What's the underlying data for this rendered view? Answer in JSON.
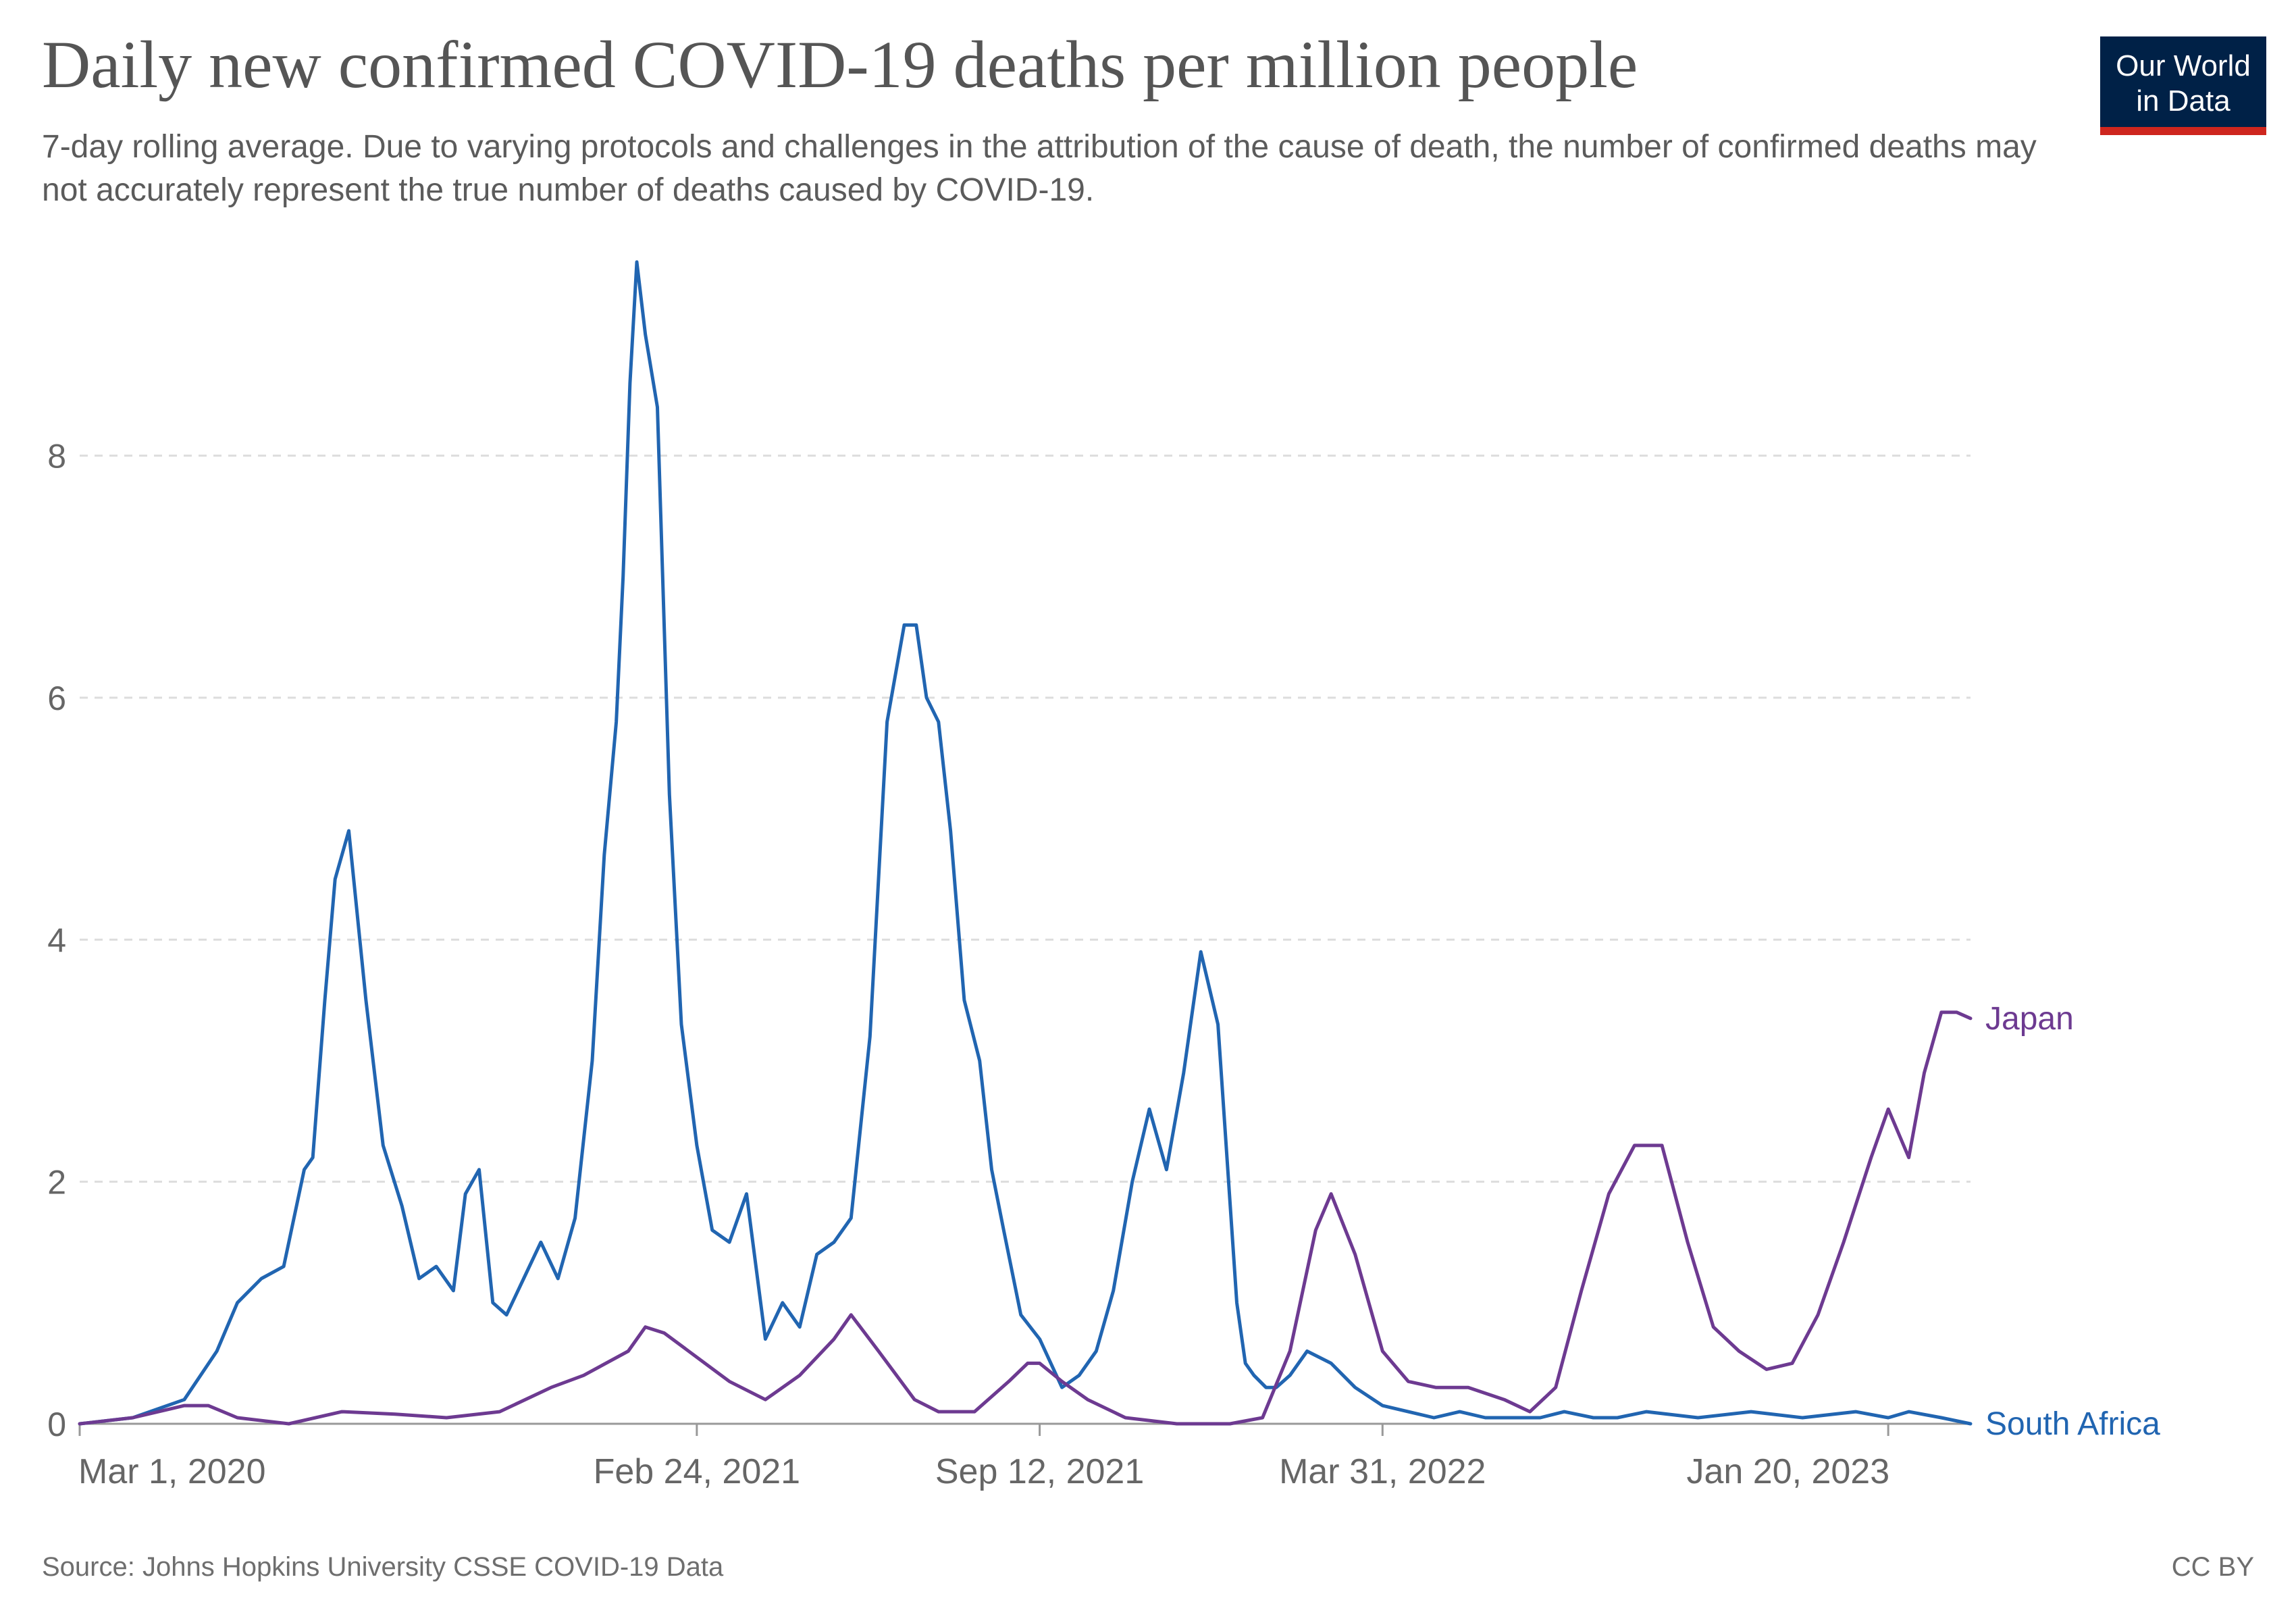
{
  "title": "Daily new confirmed COVID-19 deaths per million people",
  "subtitle": "7-day rolling average. Due to varying protocols and challenges in the attribution of the cause of death, the number of confirmed deaths may not accurately represent the true number of deaths caused by COVID-19.",
  "logo": {
    "line1": "Our World",
    "line2": "in Data"
  },
  "source": "Source: Johns Hopkins University CSSE COVID-19 Data",
  "license": "CC BY",
  "colors": {
    "south_africa": "#2165b1",
    "japan": "#6d3a91",
    "grid": "#dddddd",
    "axis_text": "#666666"
  },
  "chart_data": {
    "type": "line",
    "title": "Daily new confirmed COVID-19 deaths per million people",
    "ylim": [
      0,
      9.7
    ],
    "xlim": [
      "2020-03-01",
      "2023-03-09"
    ],
    "y_ticks": [
      0,
      2,
      4,
      6,
      8
    ],
    "y_tick_labels": [
      "0",
      "2",
      "4",
      "6",
      "8"
    ],
    "x_ticks": [
      "2020-03-01",
      "2021-02-24",
      "2021-09-12",
      "2022-03-31",
      "2023-01-20"
    ],
    "x_tick_labels": [
      "Mar 1, 2020",
      "Feb 24, 2021",
      "Sep 12, 2021",
      "Mar 31, 2022",
      "Jan 20, 2023"
    ],
    "grid": "horizontal dashed",
    "legend": "line-end labels",
    "series": [
      {
        "name": "South Africa",
        "x": [
          "2020-03-01",
          "2020-04-01",
          "2020-05-01",
          "2020-05-20",
          "2020-06-01",
          "2020-06-15",
          "2020-06-28",
          "2020-07-10",
          "2020-07-15",
          "2020-07-22",
          "2020-07-28",
          "2020-08-05",
          "2020-08-15",
          "2020-08-25",
          "2020-09-05",
          "2020-09-15",
          "2020-09-25",
          "2020-10-05",
          "2020-10-12",
          "2020-10-20",
          "2020-10-28",
          "2020-11-05",
          "2020-11-15",
          "2020-11-25",
          "2020-12-05",
          "2020-12-15",
          "2020-12-25",
          "2021-01-01",
          "2021-01-08",
          "2021-01-12",
          "2021-01-16",
          "2021-01-20",
          "2021-01-25",
          "2021-02-01",
          "2021-02-08",
          "2021-02-15",
          "2021-02-24",
          "2021-03-05",
          "2021-03-15",
          "2021-03-25",
          "2021-04-05",
          "2021-04-15",
          "2021-04-25",
          "2021-05-05",
          "2021-05-15",
          "2021-05-25",
          "2021-06-05",
          "2021-06-15",
          "2021-06-25",
          "2021-07-02",
          "2021-07-08",
          "2021-07-15",
          "2021-07-22",
          "2021-07-30",
          "2021-08-08",
          "2021-08-15",
          "2021-08-22",
          "2021-09-01",
          "2021-09-12",
          "2021-09-25",
          "2021-10-05",
          "2021-10-15",
          "2021-10-25",
          "2021-11-05",
          "2021-11-15",
          "2021-11-25",
          "2021-12-05",
          "2021-12-15",
          "2021-12-25",
          "2022-01-05",
          "2022-01-10",
          "2022-01-15",
          "2022-01-22",
          "2022-01-28",
          "2022-02-05",
          "2022-02-15",
          "2022-03-01",
          "2022-03-15",
          "2022-03-31",
          "2022-04-15",
          "2022-04-30",
          "2022-05-15",
          "2022-05-30",
          "2022-06-15",
          "2022-07-01",
          "2022-07-15",
          "2022-08-01",
          "2022-08-15",
          "2022-09-01",
          "2022-10-01",
          "2022-11-01",
          "2022-12-01",
          "2023-01-01",
          "2023-01-20",
          "2023-02-01",
          "2023-02-20",
          "2023-03-09"
        ],
        "y": [
          0,
          0.05,
          0.2,
          0.6,
          1.0,
          1.2,
          1.3,
          2.1,
          2.2,
          3.5,
          4.5,
          4.9,
          3.5,
          2.3,
          1.8,
          1.2,
          1.3,
          1.1,
          1.9,
          2.1,
          1.0,
          0.9,
          1.2,
          1.5,
          1.2,
          1.7,
          3.0,
          4.7,
          5.8,
          7.0,
          8.6,
          9.6,
          9.0,
          8.4,
          5.2,
          3.3,
          2.3,
          1.6,
          1.5,
          1.9,
          0.7,
          1.0,
          0.8,
          1.4,
          1.5,
          1.7,
          3.2,
          5.8,
          6.6,
          6.6,
          6.0,
          5.8,
          4.9,
          3.5,
          3.0,
          2.1,
          1.6,
          0.9,
          0.7,
          0.3,
          0.4,
          0.6,
          1.1,
          2.0,
          2.6,
          2.1,
          2.9,
          3.9,
          3.3,
          1.0,
          0.5,
          0.4,
          0.3,
          0.3,
          0.4,
          0.6,
          0.5,
          0.3,
          0.15,
          0.1,
          0.05,
          0.1,
          0.05,
          0.05,
          0.05,
          0.1,
          0.05,
          0.05,
          0.1,
          0.05,
          0.1,
          0.05,
          0.1,
          0.05,
          0.1,
          0.05,
          0.0
        ]
      },
      {
        "name": "Japan",
        "x": [
          "2020-03-01",
          "2020-04-01",
          "2020-05-01",
          "2020-05-15",
          "2020-06-01",
          "2020-07-01",
          "2020-08-01",
          "2020-09-01",
          "2020-10-01",
          "2020-11-01",
          "2020-12-01",
          "2020-12-20",
          "2021-01-15",
          "2021-01-25",
          "2021-02-05",
          "2021-02-24",
          "2021-03-15",
          "2021-04-05",
          "2021-04-25",
          "2021-05-15",
          "2021-05-25",
          "2021-06-10",
          "2021-07-01",
          "2021-07-15",
          "2021-08-05",
          "2021-08-25",
          "2021-09-05",
          "2021-09-12",
          "2021-09-25",
          "2021-10-10",
          "2021-11-01",
          "2021-12-01",
          "2022-01-01",
          "2022-01-20",
          "2022-02-05",
          "2022-02-20",
          "2022-03-01",
          "2022-03-15",
          "2022-03-31",
          "2022-04-15",
          "2022-05-01",
          "2022-05-20",
          "2022-06-10",
          "2022-06-25",
          "2022-07-10",
          "2022-07-25",
          "2022-08-10",
          "2022-08-25",
          "2022-09-10",
          "2022-09-25",
          "2022-10-10",
          "2022-10-25",
          "2022-11-10",
          "2022-11-25",
          "2022-12-10",
          "2022-12-25",
          "2023-01-10",
          "2023-01-20",
          "2023-02-01",
          "2023-02-10",
          "2023-02-20",
          "2023-03-01",
          "2023-03-09"
        ],
        "y": [
          0,
          0.05,
          0.15,
          0.15,
          0.05,
          0.0,
          0.1,
          0.08,
          0.05,
          0.1,
          0.3,
          0.4,
          0.6,
          0.8,
          0.75,
          0.55,
          0.35,
          0.2,
          0.4,
          0.7,
          0.9,
          0.6,
          0.2,
          0.1,
          0.1,
          0.35,
          0.5,
          0.5,
          0.35,
          0.2,
          0.05,
          0.0,
          0.0,
          0.05,
          0.6,
          1.6,
          1.9,
          1.4,
          0.6,
          0.35,
          0.3,
          0.3,
          0.2,
          0.1,
          0.3,
          1.1,
          1.9,
          2.3,
          2.3,
          1.5,
          0.8,
          0.6,
          0.45,
          0.5,
          0.9,
          1.5,
          2.2,
          2.6,
          2.2,
          2.9,
          3.4,
          3.4,
          3.35
        ]
      }
    ]
  }
}
